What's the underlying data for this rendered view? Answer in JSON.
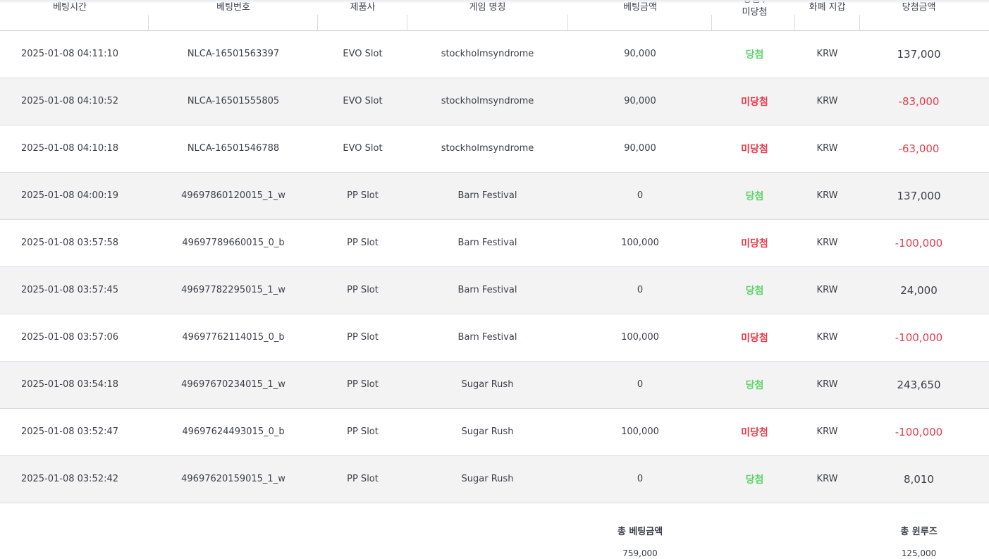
{
  "columns": [
    {
      "label": "베팅시간"
    },
    {
      "label": "베팅번호"
    },
    {
      "label": "제품사"
    },
    {
      "label": "게임 명칭"
    },
    {
      "label": "베팅금액"
    },
    {
      "label": "당첨 /\n미당첨"
    },
    {
      "label": "화폐 지갑"
    },
    {
      "label": "당첨금액"
    }
  ],
  "rows": [
    {
      "time": "2025-01-08 04:11:10",
      "bet_id": "NLCA-16501563397",
      "provider": "EVO Slot",
      "game": "stockholmsyndrome",
      "bet_amount": "90,000",
      "result": "당첨",
      "result_type": "win",
      "currency": "KRW",
      "win_amount": "137,000",
      "amount_type": "pos"
    },
    {
      "time": "2025-01-08 04:10:52",
      "bet_id": "NLCA-16501555805",
      "provider": "EVO Slot",
      "game": "stockholmsyndrome",
      "bet_amount": "90,000",
      "result": "미당첨",
      "result_type": "lose",
      "currency": "KRW",
      "win_amount": "-83,000",
      "amount_type": "neg"
    },
    {
      "time": "2025-01-08 04:10:18",
      "bet_id": "NLCA-16501546788",
      "provider": "EVO Slot",
      "game": "stockholmsyndrome",
      "bet_amount": "90,000",
      "result": "미당첨",
      "result_type": "lose",
      "currency": "KRW",
      "win_amount": "-63,000",
      "amount_type": "neg"
    },
    {
      "time": "2025-01-08 04:00:19",
      "bet_id": "49697860120015_1_w",
      "provider": "PP Slot",
      "game": "Barn Festival",
      "bet_amount": "0",
      "result": "당첨",
      "result_type": "win",
      "currency": "KRW",
      "win_amount": "137,000",
      "amount_type": "pos"
    },
    {
      "time": "2025-01-08 03:57:58",
      "bet_id": "49697789660015_0_b",
      "provider": "PP Slot",
      "game": "Barn Festival",
      "bet_amount": "100,000",
      "result": "미당첨",
      "result_type": "lose",
      "currency": "KRW",
      "win_amount": "-100,000",
      "amount_type": "neg"
    },
    {
      "time": "2025-01-08 03:57:45",
      "bet_id": "49697782295015_1_w",
      "provider": "PP Slot",
      "game": "Barn Festival",
      "bet_amount": "0",
      "result": "당첨",
      "result_type": "win",
      "currency": "KRW",
      "win_amount": "24,000",
      "amount_type": "pos"
    },
    {
      "time": "2025-01-08 03:57:06",
      "bet_id": "49697762114015_0_b",
      "provider": "PP Slot",
      "game": "Barn Festival",
      "bet_amount": "100,000",
      "result": "미당첨",
      "result_type": "lose",
      "currency": "KRW",
      "win_amount": "-100,000",
      "amount_type": "neg"
    },
    {
      "time": "2025-01-08 03:54:18",
      "bet_id": "49697670234015_1_w",
      "provider": "PP Slot",
      "game": "Sugar Rush",
      "bet_amount": "0",
      "result": "당첨",
      "result_type": "win",
      "currency": "KRW",
      "win_amount": "243,650",
      "amount_type": "pos"
    },
    {
      "time": "2025-01-08 03:52:47",
      "bet_id": "49697624493015_0_b",
      "provider": "PP Slot",
      "game": "Sugar Rush",
      "bet_amount": "100,000",
      "result": "미당첨",
      "result_type": "lose",
      "currency": "KRW",
      "win_amount": "-100,000",
      "amount_type": "neg"
    },
    {
      "time": "2025-01-08 03:52:42",
      "bet_id": "49697620159015_1_w",
      "provider": "PP Slot",
      "game": "Sugar Rush",
      "bet_amount": "0",
      "result": "당첨",
      "result_type": "win",
      "currency": "KRW",
      "win_amount": "8,010",
      "amount_type": "pos"
    }
  ],
  "summary": {
    "total_bet_label": "총 베팅금액",
    "total_bet_value": "759,000",
    "total_winloss_label": "총 윈루즈",
    "total_winloss_value": "125,000"
  },
  "colors": {
    "win": "#5ed36a",
    "lose": "#e53c4b",
    "row_alt_bg": "#f3f3f3",
    "text": "#3a3f4a"
  }
}
